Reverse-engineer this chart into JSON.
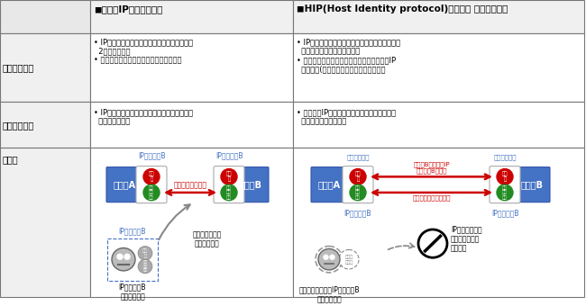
{
  "col1_header": "◼従来のIPネットワーク",
  "col2_header": "◼HIP(Host Identity protocol)を用いた ネットワーク",
  "row_labels": [
    "技術的な特徴",
    "セキュリティ",
    "概要図"
  ],
  "col1_row1_lines": [
    "• IPアドレスがホスト識別子とロケーションの",
    "  2つ役割を持つ",
    "• ホスト間の認証なしに通信が始められる"
  ],
  "col1_row2_lines": [
    "• IPアドレスさえ知っていれば、どこから・誰",
    "  からでも繋がる"
  ],
  "col2_row1_lines": [
    "• IPアドレスからホスト識別子の役割を分離し、",
    "  別にホスト識別子を定義する",
    "• 通信開始前にホスト識別子の相互認証後、IP",
    "  アドレス(ロケーション）情報が得られる"
  ],
  "col2_row2_lines": [
    "• 第三者はIPアドレス（ロケーション）が分か",
    "  らないため繋がらない"
  ],
  "bg_color": "#ffffff",
  "host_blue": "#4472c4",
  "circle_red": "#cc0000",
  "circle_green": "#228B22",
  "arrow_red": "#cc0000",
  "text_blue": "#4472c4",
  "text_red": "#cc0000"
}
